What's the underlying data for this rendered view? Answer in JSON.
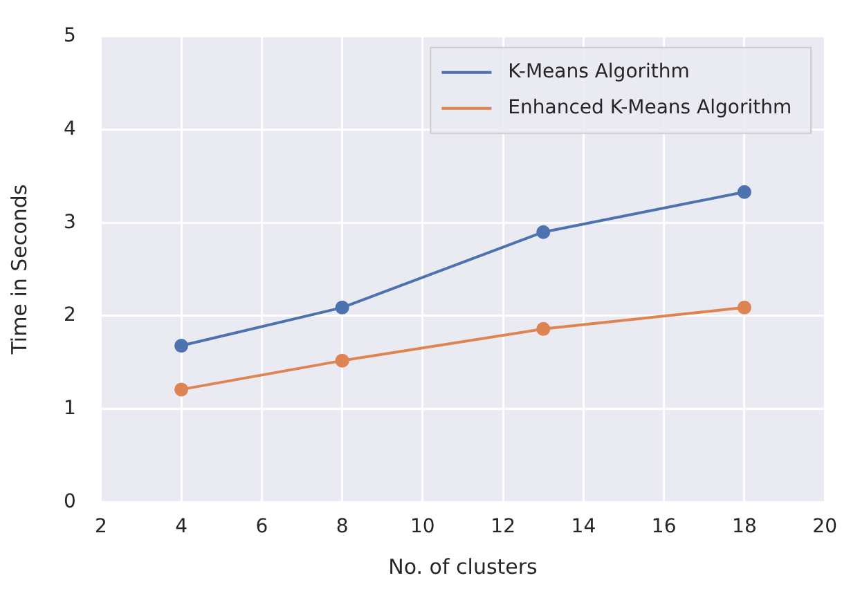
{
  "chart_data": {
    "type": "line",
    "xlabel": "No. of clusters",
    "ylabel": "Time in Seconds",
    "x": [
      4,
      8,
      13,
      18
    ],
    "series": [
      {
        "name": "K-Means Algorithm",
        "color": "#4c72b0",
        "values": [
          1.68,
          2.09,
          2.9,
          3.33
        ]
      },
      {
        "name": "Enhanced K-Means Algorithm",
        "color": "#dd8452",
        "values": [
          1.21,
          1.52,
          1.86,
          2.09
        ]
      }
    ],
    "xlim": [
      2,
      20
    ],
    "xticks": [
      2,
      4,
      6,
      8,
      10,
      12,
      14,
      16,
      18,
      20
    ],
    "ylim": [
      0,
      5
    ],
    "yticks": [
      0,
      1,
      2,
      3,
      4,
      5
    ],
    "grid": true,
    "legend": "top right",
    "marker": "circle",
    "line_style": "solid"
  }
}
